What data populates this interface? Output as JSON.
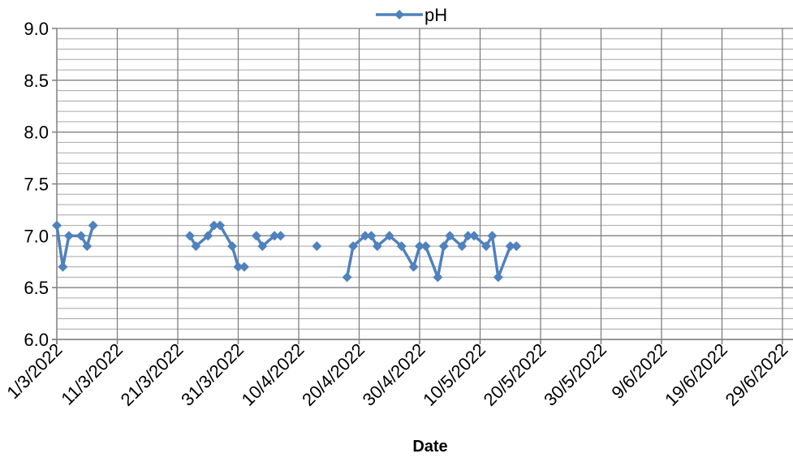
{
  "chart_data": {
    "type": "line",
    "xlabel": "Date",
    "ylim": [
      6.0,
      9.0
    ],
    "y_ticks": [
      "6.0",
      "6.5",
      "7.0",
      "7.5",
      "8.0",
      "8.5",
      "9.0"
    ],
    "x_ticks": [
      "1/3/2022",
      "11/3/2022",
      "21/3/2022",
      "31/3/2022",
      "10/4/2022",
      "20/4/2022",
      "30/4/2022",
      "10/5/2022",
      "20/5/2022",
      "30/5/2022",
      "9/6/2022",
      "19/6/2022",
      "29/6/2022"
    ],
    "x_range": [
      "1/3/2022",
      "30/6/2022"
    ],
    "grid": true,
    "legend_position": "top",
    "line_color": "#4f81bd",
    "series": [
      {
        "name": "pH",
        "points": [
          {
            "x": "1/3/2022",
            "y": 7.1
          },
          {
            "x": "2/3/2022",
            "y": 6.7
          },
          {
            "x": "3/3/2022",
            "y": 7.0
          },
          {
            "x": "5/3/2022",
            "y": 7.0
          },
          {
            "x": "6/3/2022",
            "y": 6.9
          },
          {
            "x": "7/3/2022",
            "y": 7.1
          },
          {
            "x": null,
            "y": null
          },
          {
            "x": "23/3/2022",
            "y": 7.0
          },
          {
            "x": "24/3/2022",
            "y": 6.9
          },
          {
            "x": "26/3/2022",
            "y": 7.0
          },
          {
            "x": "27/3/2022",
            "y": 7.1
          },
          {
            "x": "28/3/2022",
            "y": 7.1
          },
          {
            "x": "30/3/2022",
            "y": 6.9
          },
          {
            "x": "31/3/2022",
            "y": 6.7
          },
          {
            "x": "1/4/2022",
            "y": 6.7
          },
          {
            "x": null,
            "y": null
          },
          {
            "x": "3/4/2022",
            "y": 7.0
          },
          {
            "x": "4/4/2022",
            "y": 6.9
          },
          {
            "x": "6/4/2022",
            "y": 7.0
          },
          {
            "x": "7/4/2022",
            "y": 7.0
          },
          {
            "x": null,
            "y": null
          },
          {
            "x": "13/4/2022",
            "y": 6.9
          },
          {
            "x": null,
            "y": null
          },
          {
            "x": "18/4/2022",
            "y": 6.6
          },
          {
            "x": "19/4/2022",
            "y": 6.9
          },
          {
            "x": "21/4/2022",
            "y": 7.0
          },
          {
            "x": "22/4/2022",
            "y": 7.0
          },
          {
            "x": "23/4/2022",
            "y": 6.9
          },
          {
            "x": "25/4/2022",
            "y": 7.0
          },
          {
            "x": "27/4/2022",
            "y": 6.9
          },
          {
            "x": "29/4/2022",
            "y": 6.7
          },
          {
            "x": "30/4/2022",
            "y": 6.9
          },
          {
            "x": "1/5/2022",
            "y": 6.9
          },
          {
            "x": "3/5/2022",
            "y": 6.6
          },
          {
            "x": "4/5/2022",
            "y": 6.9
          },
          {
            "x": "5/5/2022",
            "y": 7.0
          },
          {
            "x": "7/5/2022",
            "y": 6.9
          },
          {
            "x": "8/5/2022",
            "y": 7.0
          },
          {
            "x": "9/5/2022",
            "y": 7.0
          },
          {
            "x": "11/5/2022",
            "y": 6.9
          },
          {
            "x": "12/5/2022",
            "y": 7.0
          },
          {
            "x": "13/5/2022",
            "y": 6.6
          },
          {
            "x": "15/5/2022",
            "y": 6.9
          },
          {
            "x": "16/5/2022",
            "y": 6.9
          }
        ]
      }
    ]
  }
}
